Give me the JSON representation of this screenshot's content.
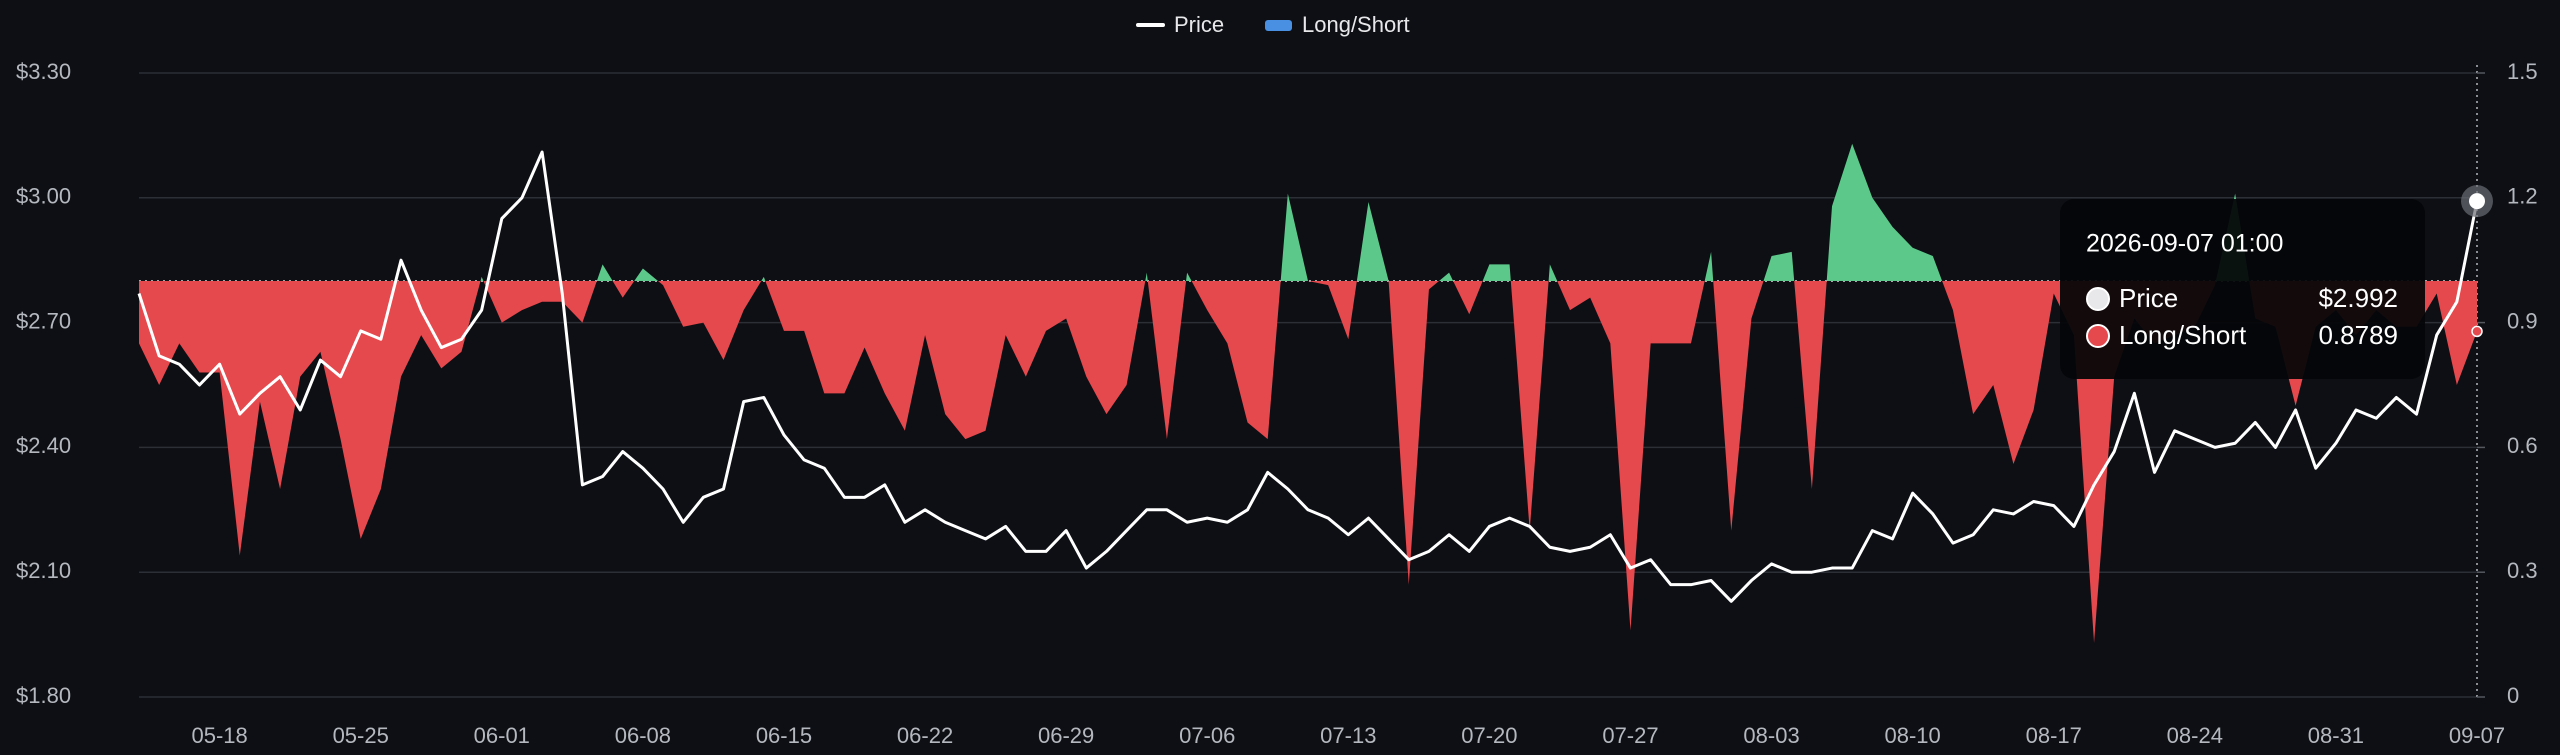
{
  "chart_data": {
    "type": "line_area",
    "categories": [
      null,
      null,
      null,
      null,
      "05-18",
      null,
      null,
      null,
      null,
      null,
      null,
      "05-25",
      null,
      null,
      null,
      null,
      null,
      null,
      "06-01",
      null,
      null,
      null,
      null,
      null,
      null,
      "06-08",
      null,
      null,
      null,
      null,
      null,
      null,
      "06-15",
      null,
      null,
      null,
      null,
      null,
      null,
      "06-22",
      null,
      null,
      null,
      null,
      null,
      null,
      "06-29",
      null,
      null,
      null,
      null,
      null,
      null,
      "07-06",
      null,
      null,
      null,
      null,
      null,
      null,
      "07-13",
      null,
      null,
      null,
      null,
      null,
      null,
      "07-20",
      null,
      null,
      null,
      null,
      null,
      null,
      "07-27",
      null,
      null,
      null,
      null,
      null,
      null,
      "08-03",
      null,
      null,
      null,
      null,
      null,
      null,
      "08-10",
      null,
      null,
      null,
      null,
      null,
      null,
      "08-17",
      null,
      null,
      null,
      null,
      null,
      null,
      "08-24",
      null,
      null,
      null,
      null,
      null,
      null,
      "08-31",
      null,
      null,
      null,
      null,
      null,
      null,
      "09-07"
    ],
    "series": [
      {
        "name": "Price",
        "color": "#ffffff",
        "values": [
          2.77,
          2.62,
          2.6,
          2.55,
          2.6,
          2.48,
          2.53,
          2.57,
          2.49,
          2.61,
          2.57,
          2.68,
          2.66,
          2.85,
          2.73,
          2.64,
          2.66,
          2.73,
          2.95,
          3.0,
          3.11,
          2.77,
          2.31,
          2.33,
          2.39,
          2.35,
          2.3,
          2.22,
          2.28,
          2.3,
          2.51,
          2.52,
          2.43,
          2.37,
          2.35,
          2.28,
          2.28,
          2.31,
          2.22,
          2.25,
          2.22,
          2.2,
          2.18,
          2.21,
          2.15,
          2.15,
          2.2,
          2.11,
          2.15,
          2.2,
          2.25,
          2.25,
          2.22,
          2.23,
          2.22,
          2.25,
          2.34,
          2.3,
          2.25,
          2.23,
          2.19,
          2.23,
          2.18,
          2.13,
          2.15,
          2.19,
          2.15,
          2.21,
          2.23,
          2.21,
          2.16,
          2.15,
          2.16,
          2.19,
          2.11,
          2.13,
          2.07,
          2.07,
          2.08,
          2.03,
          2.08,
          2.12,
          2.1,
          2.1,
          2.11,
          2.11,
          2.2,
          2.18,
          2.29,
          2.24,
          2.17,
          2.19,
          2.25,
          2.24,
          2.27,
          2.26,
          2.21,
          2.31,
          2.39,
          2.53,
          2.34,
          2.44,
          2.42,
          2.4,
          2.41,
          2.46,
          2.4,
          2.49,
          2.35,
          2.41,
          2.49,
          2.47,
          2.52,
          2.48,
          2.67,
          2.75,
          2.992
        ]
      },
      {
        "name": "Long/Short",
        "color": "#4a90e2",
        "axis": "y2",
        "baseline": 1,
        "color_above": "#5cc98a",
        "color_below": "#e5484d",
        "values": [
          0.85,
          0.75,
          0.85,
          0.78,
          0.78,
          0.34,
          0.71,
          0.5,
          0.77,
          0.83,
          0.62,
          0.38,
          0.5,
          0.77,
          0.87,
          0.79,
          0.83,
          1.01,
          0.9,
          0.93,
          0.95,
          0.95,
          0.9,
          1.04,
          0.96,
          1.03,
          0.99,
          0.89,
          0.9,
          0.81,
          0.93,
          1.01,
          0.88,
          0.88,
          0.73,
          0.73,
          0.84,
          0.73,
          0.64,
          0.87,
          0.68,
          0.62,
          0.64,
          0.87,
          0.77,
          0.88,
          0.91,
          0.77,
          0.68,
          0.75,
          1.02,
          0.62,
          1.02,
          0.93,
          0.85,
          0.66,
          0.62,
          1.21,
          1.0,
          0.99,
          0.86,
          1.19,
          1.0,
          0.27,
          0.98,
          1.02,
          0.92,
          1.04,
          1.04,
          0.4,
          1.04,
          0.93,
          0.96,
          0.85,
          0.16,
          0.85,
          0.85,
          0.85,
          1.07,
          0.4,
          0.91,
          1.06,
          1.07,
          0.5,
          1.18,
          1.33,
          1.2,
          1.13,
          1.08,
          1.06,
          0.93,
          0.68,
          0.75,
          0.56,
          0.69,
          0.97,
          0.87,
          0.13,
          0.77,
          0.91,
          0.85,
          0.87,
          0.89,
          0.99,
          1.21,
          0.91,
          0.89,
          0.7,
          0.89,
          0.93,
          0.87,
          0.93,
          0.89,
          0.89,
          0.97,
          0.75,
          0.8789
        ]
      }
    ],
    "ylim": [
      1.8,
      3.3
    ],
    "yticks": [
      {
        "value": 1.8,
        "label": "$1.80"
      },
      {
        "value": 2.1,
        "label": "$2.10"
      },
      {
        "value": 2.4,
        "label": "$2.40"
      },
      {
        "value": 2.7,
        "label": "$2.70"
      },
      {
        "value": 3.0,
        "label": "$3.00"
      },
      {
        "value": 3.3,
        "label": "$3.30"
      }
    ],
    "y2lim": [
      0,
      1.5
    ],
    "y2ticks": [
      0,
      0.3,
      0.6,
      0.9,
      1.2,
      1.5
    ],
    "grid": true,
    "legend": "top",
    "tooltip": {
      "title": "2026-09-07 01:00",
      "value_labels": [
        "$2.992",
        "0.8789"
      ]
    }
  }
}
